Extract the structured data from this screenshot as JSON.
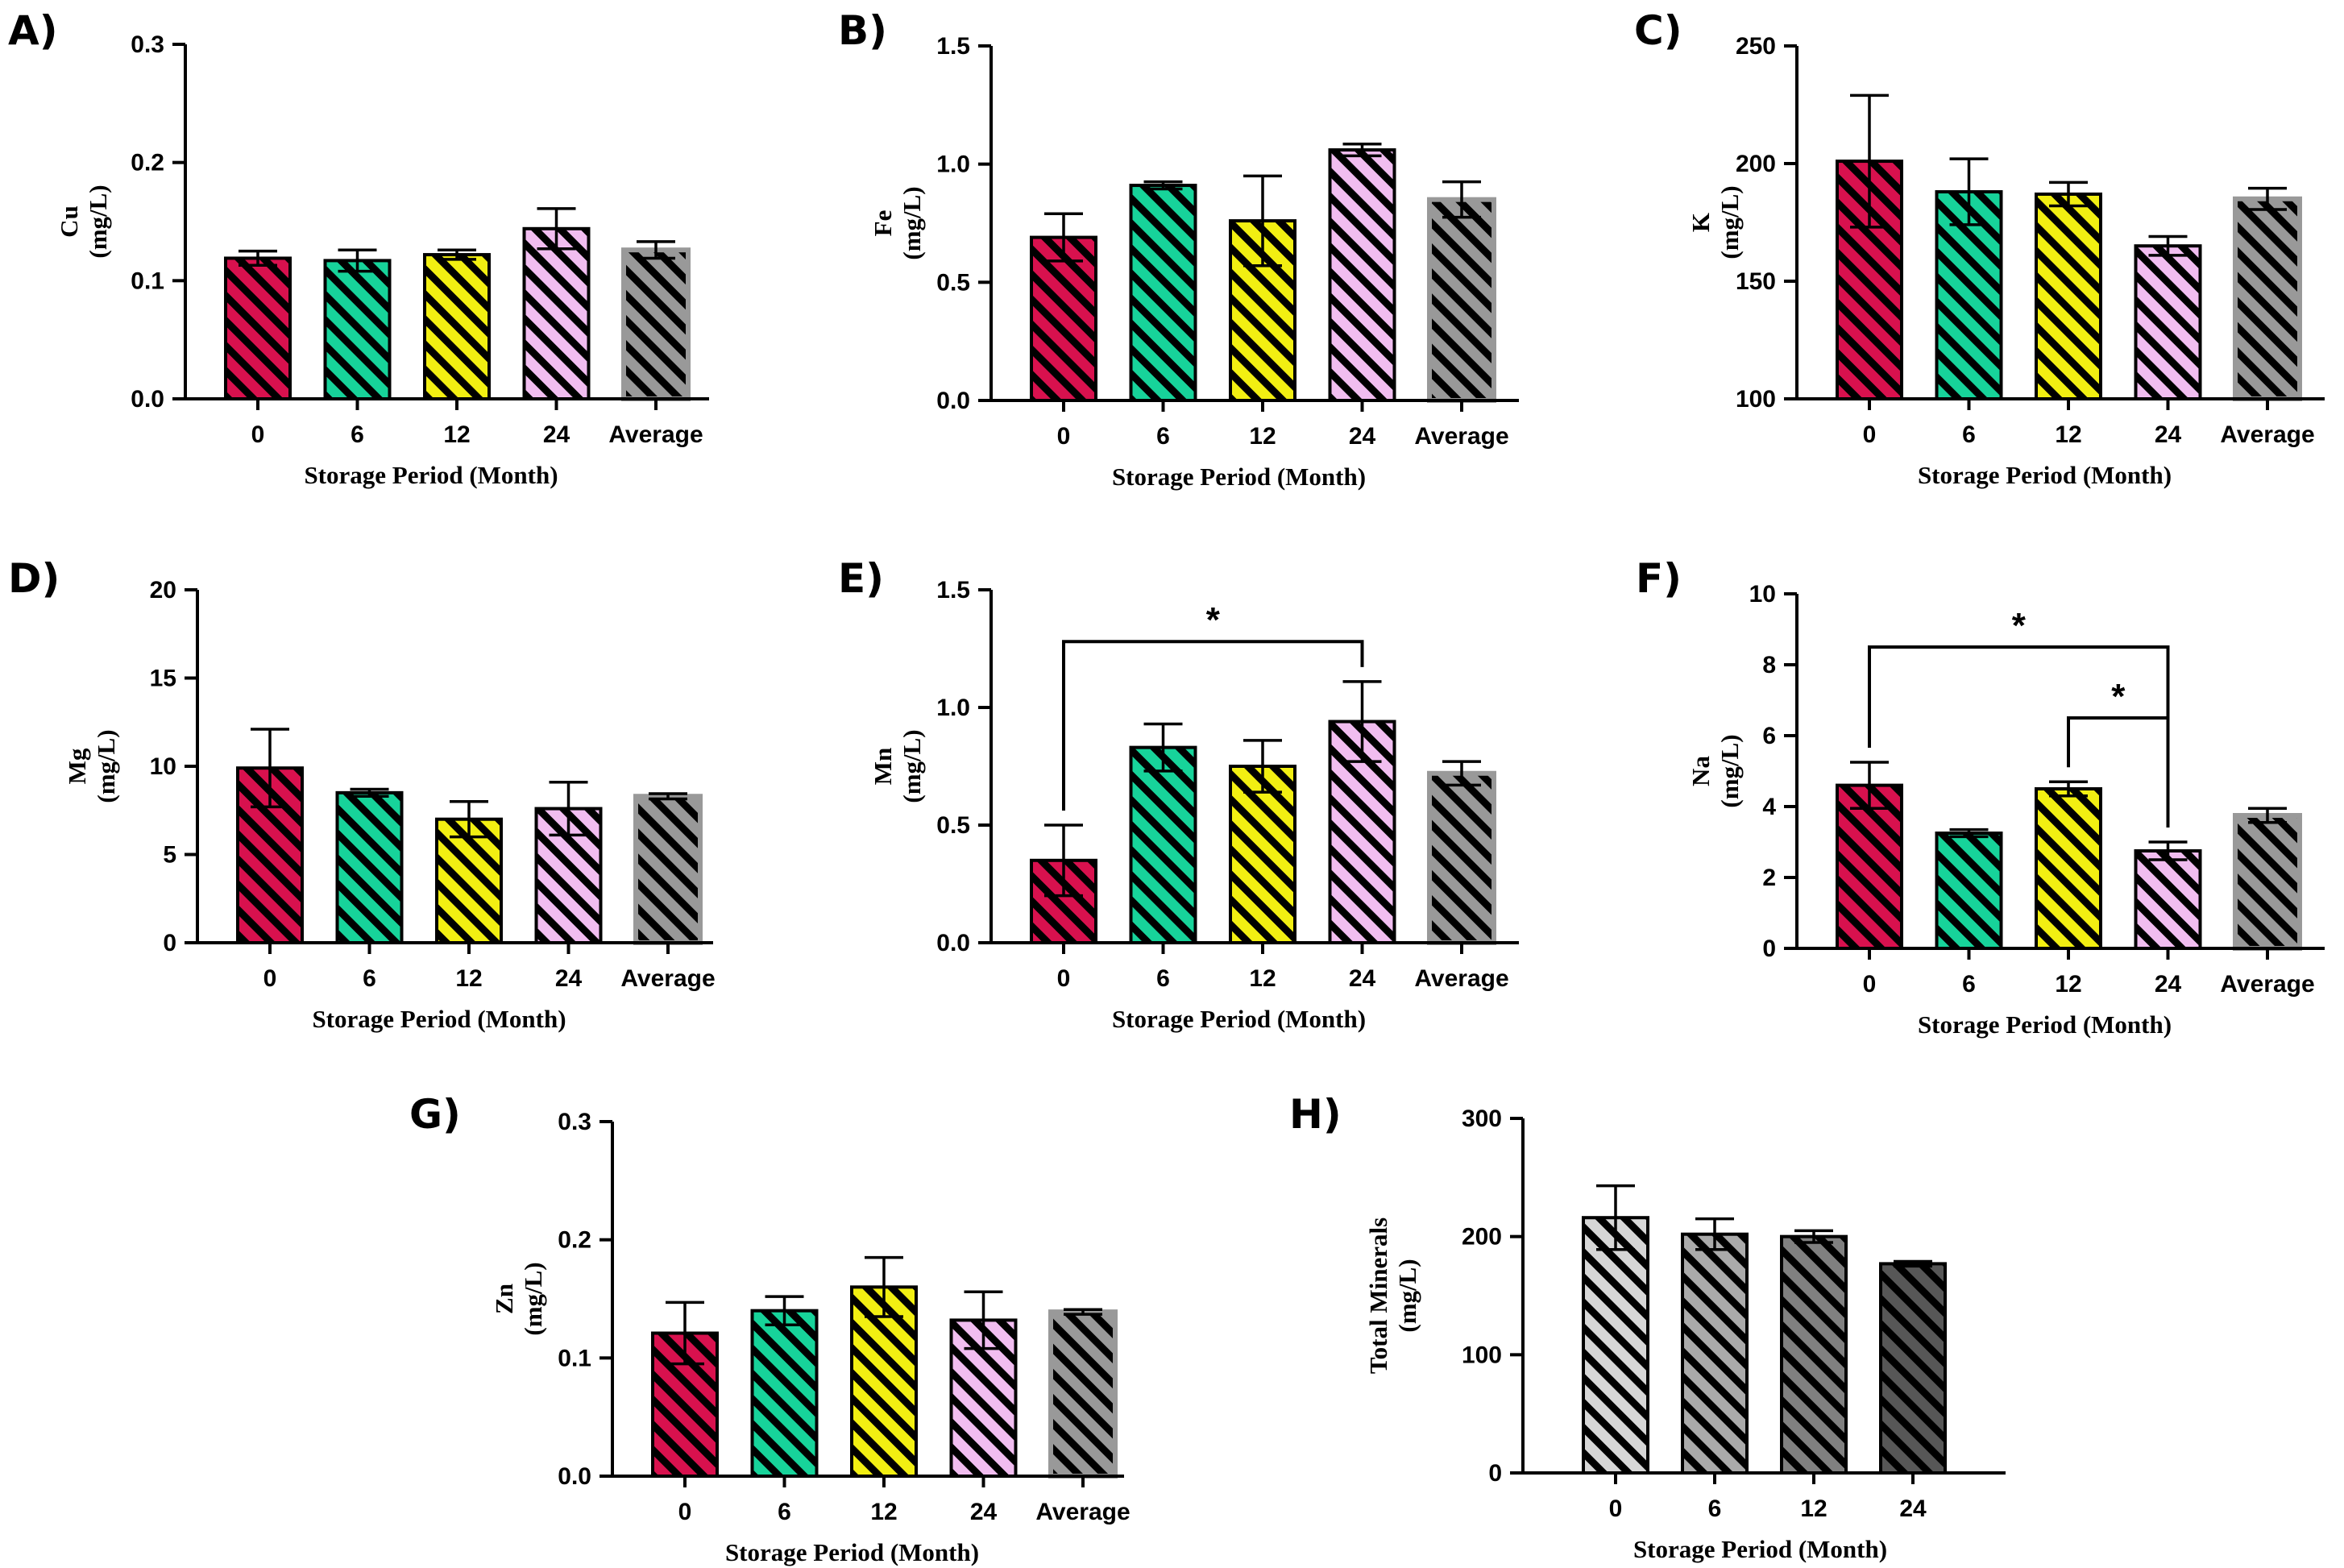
{
  "figure": {
    "categories": [
      "0",
      "6",
      "12",
      "24",
      "Average"
    ],
    "xlabel": "Storage Period (Month)",
    "colors": {
      "0": "#d8114e",
      "6": "#17d39a",
      "12": "#f2ef12",
      "24": "#f1bdf0",
      "Average": "#999999",
      "total_0": "#d6d6d6",
      "total_6": "#aaaaaa",
      "total_12": "#808080",
      "total_24": "#575757"
    }
  },
  "chart_data": [
    {
      "panel": "A)",
      "type": "bar",
      "ylabel_main": "Cu",
      "ylabel_unit": "(mg/L)",
      "xlabel": "Storage Period (Month)",
      "categories": [
        "0",
        "6",
        "12",
        "24",
        "Average"
      ],
      "values": [
        0.119,
        0.117,
        0.122,
        0.144,
        0.126
      ],
      "errors": [
        0.006,
        0.009,
        0.004,
        0.017,
        0.007
      ],
      "ylim": [
        0,
        0.3
      ],
      "yticks": [
        0.0,
        0.1,
        0.2,
        0.3
      ],
      "ytick_labels": [
        "0.0",
        "0.1",
        "0.2",
        "0.3"
      ],
      "significance": []
    },
    {
      "panel": "B)",
      "type": "bar",
      "ylabel_main": "Fe",
      "ylabel_unit": "(mg/L)",
      "xlabel": "Storage Period (Month)",
      "categories": [
        "0",
        "6",
        "12",
        "24",
        "Average"
      ],
      "values": [
        0.69,
        0.91,
        0.76,
        1.06,
        0.85
      ],
      "errors": [
        0.1,
        0.015,
        0.19,
        0.025,
        0.075
      ],
      "ylim": [
        0,
        1.5
      ],
      "yticks": [
        0.0,
        0.5,
        1.0,
        1.5
      ],
      "ytick_labels": [
        "0.0",
        "0.5",
        "1.0",
        "1.5"
      ],
      "significance": []
    },
    {
      "panel": "C)",
      "type": "bar",
      "ylabel_main": "K",
      "ylabel_unit": "(mg/L)",
      "xlabel": "Storage Period (Month)",
      "categories": [
        "0",
        "6",
        "12",
        "24",
        "Average"
      ],
      "values": [
        201,
        188,
        187,
        165,
        185
      ],
      "errors": [
        28,
        14,
        5,
        4,
        4.5
      ],
      "ylim": [
        100,
        250
      ],
      "yticks": [
        100,
        150,
        200,
        250
      ],
      "ytick_labels": [
        "100",
        "150",
        "200",
        "250"
      ],
      "significance": []
    },
    {
      "panel": "D)",
      "type": "bar",
      "ylabel_main": "Mg",
      "ylabel_unit": "(mg/L)",
      "xlabel": "Storage Period (Month)",
      "categories": [
        "0",
        "6",
        "12",
        "24",
        "Average"
      ],
      "values": [
        9.9,
        8.5,
        7.0,
        7.6,
        8.3
      ],
      "errors": [
        2.2,
        0.2,
        1.0,
        1.5,
        0.15
      ],
      "ylim": [
        0,
        20
      ],
      "yticks": [
        0,
        5,
        10,
        15,
        20
      ],
      "ytick_labels": [
        "0",
        "5",
        "10",
        "15",
        "20"
      ],
      "significance": []
    },
    {
      "panel": "E)",
      "type": "bar",
      "ylabel_main": "Mn",
      "ylabel_unit": "(mg/L)",
      "xlabel": "Storage Period (Month)",
      "categories": [
        "0",
        "6",
        "12",
        "24",
        "Average"
      ],
      "values": [
        0.35,
        0.83,
        0.75,
        0.94,
        0.72
      ],
      "errors": [
        0.15,
        0.1,
        0.11,
        0.17,
        0.05
      ],
      "ylim": [
        0,
        1.5
      ],
      "yticks": [
        0.0,
        0.5,
        1.0,
        1.5
      ],
      "ytick_labels": [
        "0.0",
        "0.5",
        "1.0",
        "1.5"
      ],
      "significance": [
        {
          "from": 0,
          "to": 3,
          "y": 1.28,
          "label": "*"
        }
      ]
    },
    {
      "panel": "F)",
      "type": "bar",
      "ylabel_main": "Na",
      "ylabel_unit": "(mg/L)",
      "xlabel": "Storage Period (Month)",
      "categories": [
        "0",
        "6",
        "12",
        "24",
        "Average"
      ],
      "values": [
        4.6,
        3.25,
        4.5,
        2.75,
        3.75
      ],
      "errors": [
        0.65,
        0.1,
        0.2,
        0.25,
        0.2
      ],
      "ylim": [
        0,
        10
      ],
      "yticks": [
        0,
        2,
        4,
        6,
        8,
        10
      ],
      "ytick_labels": [
        "0",
        "2",
        "4",
        "6",
        "8",
        "10"
      ],
      "significance": [
        {
          "from": 0,
          "to": 3,
          "y": 8.5,
          "label": "*"
        },
        {
          "from": 2,
          "to": 3,
          "y": 6.5,
          "label": "*"
        }
      ]
    },
    {
      "panel": "G)",
      "type": "bar",
      "ylabel_main": "Zn",
      "ylabel_unit": "(mg/L)",
      "xlabel": "Storage Period (Month)",
      "categories": [
        "0",
        "6",
        "12",
        "24",
        "Average"
      ],
      "values": [
        0.121,
        0.14,
        0.16,
        0.132,
        0.139
      ],
      "errors": [
        0.026,
        0.012,
        0.025,
        0.024,
        0.002
      ],
      "ylim": [
        0,
        0.3
      ],
      "yticks": [
        0.0,
        0.1,
        0.2,
        0.3
      ],
      "ytick_labels": [
        "0.0",
        "0.1",
        "0.2",
        "0.3"
      ],
      "significance": []
    },
    {
      "panel": "H)",
      "type": "bar",
      "ylabel_main": "Total Minerals",
      "ylabel_unit": "(mg/L)",
      "xlabel": "Storage Period (Month)",
      "categories": [
        "0",
        "6",
        "12",
        "24"
      ],
      "values": [
        216,
        202,
        200,
        177
      ],
      "errors": [
        27,
        13,
        5,
        2
      ],
      "ylim": [
        0,
        300
      ],
      "yticks": [
        0,
        100,
        200,
        300
      ],
      "ytick_labels": [
        "0",
        "100",
        "200",
        "300"
      ],
      "significance": []
    }
  ]
}
